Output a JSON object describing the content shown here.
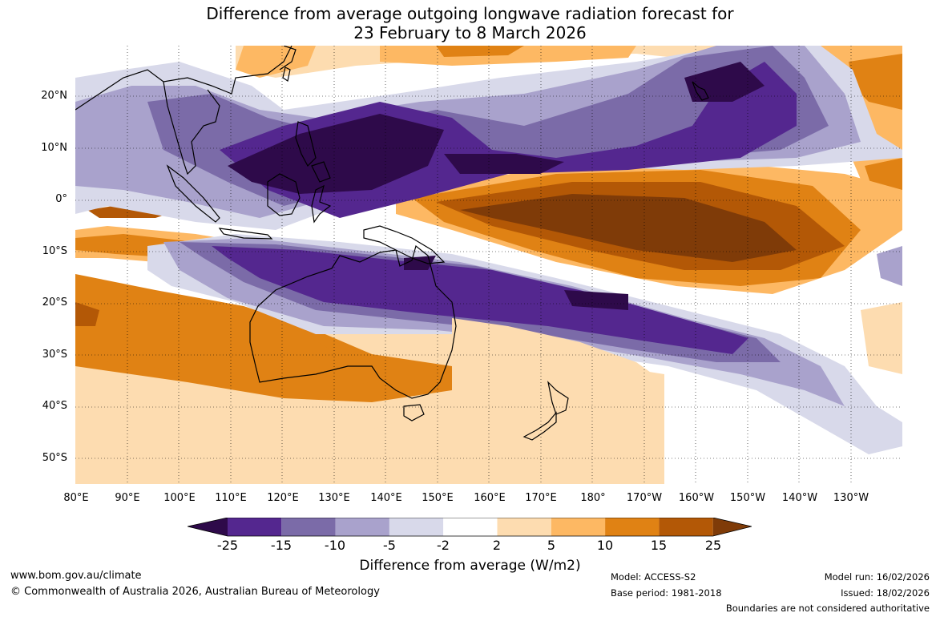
{
  "title": {
    "line1": "Difference from average outgoing longwave radiation forecast for",
    "line2": "23 February to 8 March 2026"
  },
  "map": {
    "lat_labels": [
      "20°N",
      "10°N",
      "0°",
      "10°S",
      "20°S",
      "30°S",
      "40°S",
      "50°S"
    ],
    "lon_labels": [
      "80°E",
      "90°E",
      "100°E",
      "110°E",
      "120°E",
      "130°E",
      "140°E",
      "150°E",
      "160°E",
      "170°E",
      "180°",
      "170°W",
      "160°W",
      "150°W",
      "140°W",
      "130°W"
    ]
  },
  "colorbar": {
    "ticks": [
      "-25",
      "-15",
      "-10",
      "-5",
      "-2",
      "2",
      "5",
      "10",
      "15",
      "25"
    ],
    "colors": [
      "#2e0a4a",
      "#54278f",
      "#7b6ba8",
      "#a9a2cc",
      "#d8d9ea",
      "#ffffff",
      "#fddcb0",
      "#fdb863",
      "#e08214",
      "#b35806",
      "#7f3b08"
    ],
    "label": "Difference from average (W/m2)"
  },
  "footer": {
    "website": "www.bom.gov.au/climate",
    "copyright": "© Commonwealth of Australia 2026, Australian Bureau of Meteorology",
    "model": "Model: ACCESS-S2",
    "base_period": "Base period: 1981-2018",
    "model_run": "Model run: 16/02/2026",
    "issued": "Issued: 18/02/2026",
    "disclaimer": "Boundaries are not considered authoritative"
  }
}
